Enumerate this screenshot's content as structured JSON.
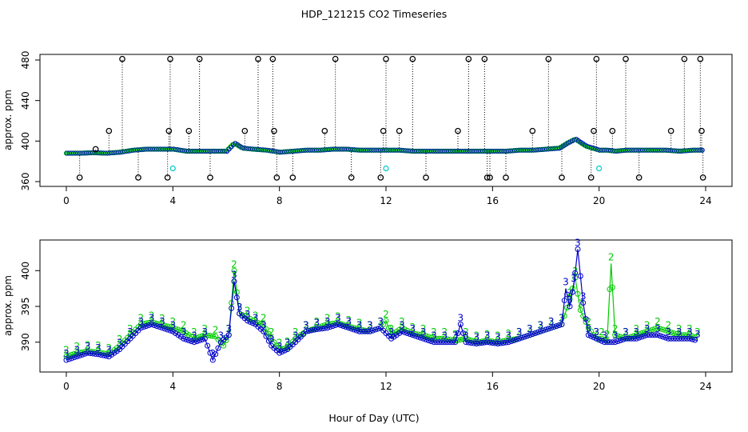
{
  "figure": {
    "title": "HDP_121215  CO2 Timeseries",
    "xlabel": "Hour of Day (UTC)"
  },
  "colors": {
    "raw_points": "#000000",
    "series1": "#00cccc",
    "series2": "#00cc00",
    "series3": "#0000cc"
  },
  "chart_data": [
    {
      "type": "scatter",
      "name": "top-panel",
      "title": "",
      "xlabel": "",
      "ylabel": "approx. ppm",
      "xlim": [
        0,
        24
      ],
      "ylim": [
        360,
        480
      ],
      "xticks": [
        0,
        4,
        8,
        12,
        16,
        20,
        24
      ],
      "yticks": [
        360,
        400,
        440,
        480
      ],
      "xtick_labels": [
        "0",
        "4",
        "8",
        "12",
        "16",
        "20",
        "24"
      ],
      "ytick_labels": [
        "360",
        "400",
        "440",
        "480"
      ],
      "baseline_series": {
        "name": "co2",
        "x": [
          0,
          0.5,
          1,
          1.5,
          2,
          2.5,
          3,
          3.5,
          4,
          4.5,
          5,
          5.5,
          6,
          6.3,
          6.6,
          7,
          7.5,
          8,
          8.5,
          9,
          9.5,
          10,
          10.5,
          11,
          11.5,
          12,
          12.5,
          13,
          13.5,
          14,
          14.5,
          15,
          15.5,
          16,
          16.5,
          17,
          17.5,
          18,
          18.5,
          18.8,
          19.1,
          19.5,
          20,
          20.3,
          20.6,
          21,
          21.5,
          22,
          22.5,
          23,
          23.5,
          23.8
        ],
        "y": [
          388,
          388,
          388.5,
          388,
          389,
          391,
          392,
          392,
          392,
          390,
          390,
          390,
          390,
          398,
          393,
          392,
          391,
          389,
          390,
          391,
          391,
          392,
          392,
          391,
          391,
          391,
          391,
          390,
          390,
          390,
          390,
          390,
          390,
          390,
          390,
          391,
          391,
          392,
          393,
          398,
          402,
          395,
          391,
          391,
          390,
          391,
          391,
          391,
          391,
          390,
          391,
          391
        ]
      },
      "outliers": {
        "x": [
          0.5,
          1.1,
          1.6,
          2.1,
          2.7,
          3.8,
          3.85,
          3.9,
          4.6,
          5.0,
          5.4,
          6.7,
          7.2,
          7.75,
          7.8,
          7.9,
          8.5,
          9.7,
          10.1,
          10.7,
          11.8,
          11.9,
          12.0,
          12.5,
          13.0,
          13.5,
          14.7,
          15.1,
          15.7,
          15.8,
          15.9,
          16.5,
          17.5,
          18.1,
          18.6,
          19.7,
          19.8,
          19.9,
          20.5,
          21.0,
          21.5,
          22.7,
          23.2,
          23.8,
          23.85,
          23.9
        ],
        "y": [
          364,
          392,
          410,
          481,
          364,
          364,
          410,
          481,
          410,
          481,
          364,
          410,
          481,
          481,
          410,
          364,
          364,
          410,
          481,
          364,
          364,
          410,
          481,
          410,
          481,
          364,
          410,
          481,
          481,
          364,
          364,
          364,
          410,
          481,
          364,
          364,
          410,
          481,
          410,
          481,
          364,
          410,
          481,
          481,
          410,
          364
        ]
      },
      "cyan_points": {
        "x": [
          4.0,
          12.0,
          20.0
        ],
        "y": [
          373,
          373,
          373
        ]
      }
    },
    {
      "type": "scatter",
      "name": "bottom-panel",
      "title": "",
      "xlabel": "Hour of Day (UTC)",
      "ylabel": "approx. ppm",
      "xlim": [
        0,
        24
      ],
      "ylim": [
        386.5,
        403.5
      ],
      "xticks": [
        0,
        4,
        8,
        12,
        16,
        20,
        24
      ],
      "yticks": [
        390,
        395,
        400
      ],
      "xtick_labels": [
        "0",
        "4",
        "8",
        "12",
        "16",
        "20",
        "24"
      ],
      "ytick_labels": [
        "390",
        "395",
        "400"
      ],
      "series": [
        {
          "name": "2",
          "label": "2",
          "x": [
            0.0,
            0.4,
            0.8,
            1.2,
            1.6,
            2.0,
            2.4,
            2.8,
            3.2,
            3.6,
            4.0,
            4.4,
            4.8,
            5.2,
            5.6,
            5.9,
            6.1,
            6.3,
            6.5,
            6.8,
            7.1,
            7.4,
            7.7,
            8.0,
            8.3,
            8.6,
            9.0,
            9.4,
            9.8,
            10.2,
            10.6,
            11.0,
            11.4,
            11.8,
            12.0,
            12.2,
            12.6,
            13.0,
            13.4,
            13.8,
            14.2,
            14.6,
            15.0,
            15.4,
            15.8,
            16.2,
            16.6,
            17.0,
            17.4,
            17.8,
            18.2,
            18.6,
            18.9,
            19.1,
            19.3,
            19.6,
            19.9,
            20.1,
            20.3,
            20.45,
            20.6,
            21.0,
            21.4,
            21.8,
            22.2,
            22.6,
            23.0,
            23.4,
            23.7
          ],
          "y": [
            388.0,
            388.5,
            388.7,
            388.6,
            388.3,
            389.5,
            391.0,
            392.5,
            392.8,
            392.4,
            392.0,
            391.5,
            390.5,
            391.0,
            390.8,
            389.5,
            391.0,
            400.0,
            394.0,
            393.5,
            392.8,
            392.5,
            390.5,
            389.0,
            389.2,
            390.5,
            391.5,
            392.0,
            392.5,
            392.7,
            392.2,
            391.8,
            391.5,
            392.0,
            393.0,
            391.0,
            392.0,
            391.2,
            391.0,
            390.5,
            390.5,
            390.2,
            390.5,
            390.0,
            390.2,
            390.0,
            390.3,
            390.5,
            391.0,
            391.5,
            392.0,
            392.5,
            396.0,
            399.0,
            394.5,
            392.0,
            390.5,
            390.5,
            390.2,
            401.0,
            391.0,
            390.5,
            391.0,
            391.5,
            392.0,
            391.5,
            391.0,
            391.0,
            390.5
          ]
        },
        {
          "name": "3",
          "label": "3",
          "x": [
            0.0,
            0.4,
            0.8,
            1.2,
            1.6,
            2.0,
            2.4,
            2.8,
            3.2,
            3.6,
            4.0,
            4.4,
            4.8,
            5.2,
            5.5,
            5.8,
            6.1,
            6.3,
            6.5,
            6.8,
            7.1,
            7.4,
            7.7,
            8.0,
            8.3,
            8.6,
            9.0,
            9.4,
            9.8,
            10.2,
            10.6,
            11.0,
            11.4,
            11.8,
            12.2,
            12.6,
            13.0,
            13.4,
            13.8,
            14.2,
            14.6,
            14.8,
            15.0,
            15.4,
            15.8,
            16.2,
            16.6,
            17.0,
            17.4,
            17.8,
            18.2,
            18.6,
            18.75,
            18.9,
            19.05,
            19.2,
            19.4,
            19.6,
            19.9,
            20.2,
            20.6,
            21.0,
            21.4,
            21.8,
            22.2,
            22.6,
            23.0,
            23.4,
            23.7
          ],
          "y": [
            387.5,
            388.0,
            388.5,
            388.3,
            388.0,
            389.0,
            390.5,
            392.0,
            392.5,
            392.0,
            391.5,
            390.5,
            390.0,
            390.5,
            387.5,
            390.0,
            391.0,
            398.5,
            394.0,
            393.0,
            392.5,
            391.5,
            389.5,
            388.5,
            389.0,
            390.0,
            391.5,
            391.8,
            392.0,
            392.5,
            392.0,
            391.5,
            391.5,
            392.0,
            390.5,
            391.5,
            391.0,
            390.5,
            390.0,
            390.0,
            390.0,
            392.5,
            390.0,
            389.8,
            390.0,
            389.8,
            390.0,
            390.5,
            391.0,
            391.5,
            392.0,
            392.5,
            397.5,
            395.0,
            398.0,
            403.0,
            395.5,
            391.0,
            390.5,
            390.0,
            390.0,
            390.5,
            390.5,
            391.0,
            391.0,
            390.5,
            390.5,
            390.5,
            390.2
          ]
        }
      ]
    }
  ]
}
